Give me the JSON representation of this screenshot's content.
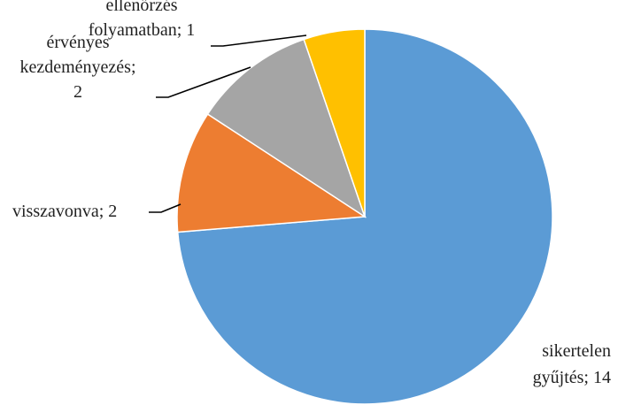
{
  "chart_data": {
    "type": "pie",
    "title": "",
    "slices": [
      {
        "name": "sikertelen gyűjtés",
        "value": 14,
        "color": "#5B9BD5",
        "label_lines": [
          "sikertelen",
          "gyűjtés; 14"
        ]
      },
      {
        "name": "visszavonva",
        "value": 2,
        "color": "#ED7D31",
        "label_lines": [
          "visszavonva; 2"
        ]
      },
      {
        "name": "érvényes kezdeményezés",
        "value": 2,
        "color": "#A5A5A5",
        "label_lines": [
          "érvényes",
          "kezdeményezés;",
          "2"
        ]
      },
      {
        "name": "ellenőrzés folyamatban",
        "value": 1,
        "color": "#FFC000",
        "label_lines": [
          "ellenőrzés",
          "folyamatban; 1"
        ]
      }
    ],
    "start_angle_deg": 0,
    "direction": "clockwise",
    "legend": "none",
    "data_labels": "category; value"
  }
}
